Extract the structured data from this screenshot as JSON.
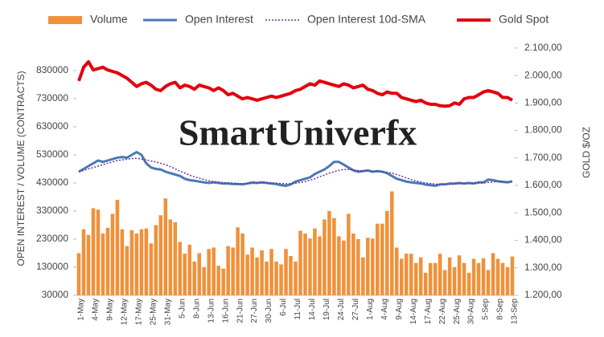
{
  "chart_data": {
    "type": "combo",
    "annotation": "SmartUniverfx",
    "y_label": "OPEN INTEREST / VOLUME (CONTRACTS)",
    "y2_label": "GOLD $/OZ",
    "categories": [
      "1-May",
      null,
      null,
      "4-May",
      null,
      null,
      "9-May",
      null,
      null,
      "12-May",
      null,
      null,
      "17-May",
      null,
      null,
      "25-May",
      null,
      null,
      "31-May",
      null,
      null,
      "5-Jun",
      null,
      null,
      "8-Jun",
      null,
      null,
      "13-Jun",
      null,
      null,
      "16-Jun",
      null,
      null,
      "21-Jun",
      null,
      null,
      "27-Jun",
      null,
      null,
      "30-Jun",
      null,
      null,
      "6-Jul",
      null,
      null,
      "11-Jul",
      null,
      null,
      "14-Jul",
      null,
      null,
      "19-Jul",
      null,
      null,
      "24-Jul",
      null,
      null,
      "27-Jul",
      null,
      null,
      "1-Aug",
      null,
      null,
      "4-Aug",
      null,
      null,
      "9-Aug",
      null,
      null,
      "14-Aug",
      null,
      null,
      "17-Aug",
      null,
      null,
      "22-Aug",
      null,
      null,
      "25-Aug",
      null,
      null,
      "30-Aug",
      null,
      null,
      "5-Sep",
      null,
      null,
      "8-Sep",
      null,
      null,
      "13-Sep"
    ],
    "series": [
      {
        "name": "Volume",
        "type": "bar",
        "color": "#f0913a",
        "values": [
          180000,
          265000,
          245000,
          340000,
          335000,
          250000,
          270000,
          320000,
          370000,
          265000,
          205000,
          262000,
          250000,
          265000,
          268000,
          215000,
          280000,
          315000,
          375000,
          300000,
          290000,
          220000,
          178000,
          210000,
          150000,
          180000,
          130000,
          195000,
          200000,
          135000,
          125000,
          205000,
          200000,
          272000,
          250000,
          175000,
          200000,
          165000,
          190000,
          150000,
          195000,
          150000,
          140000,
          195000,
          170000,
          150000,
          260000,
          250000,
          232000,
          268000,
          240000,
          300000,
          330000,
          305000,
          240000,
          225000,
          320000,
          250000,
          230000,
          165000,
          235000,
          232000,
          285000,
          285000,
          330000,
          400000,
          200000,
          160000,
          178000,
          178000,
          145000,
          165000,
          110000,
          145000,
          145000,
          178000,
          120000,
          165000,
          130000,
          172000,
          145000,
          110000,
          160000,
          145000,
          162000,
          120000,
          180000,
          160000,
          145000,
          130000,
          168000
        ]
      },
      {
        "name": "Open Interest",
        "type": "line",
        "color": "#4a78b5",
        "line_style": "solid",
        "values": [
          470000,
          480000,
          490000,
          500000,
          510000,
          505000,
          510000,
          515000,
          520000,
          522000,
          520000,
          530000,
          540000,
          530000,
          500000,
          485000,
          480000,
          478000,
          470000,
          465000,
          460000,
          455000,
          445000,
          440000,
          438000,
          435000,
          432000,
          430000,
          432000,
          430000,
          428000,
          428000,
          426000,
          426000,
          425000,
          428000,
          432000,
          430000,
          432000,
          430000,
          428000,
          426000,
          422000,
          420000,
          425000,
          435000,
          440000,
          445000,
          450000,
          462000,
          470000,
          478000,
          490000,
          505000,
          505000,
          495000,
          485000,
          475000,
          470000,
          472000,
          475000,
          470000,
          472000,
          470000,
          465000,
          455000,
          445000,
          440000,
          435000,
          432000,
          430000,
          428000,
          424000,
          422000,
          420000,
          425000,
          425000,
          428000,
          428000,
          430000,
          428000,
          430000,
          428000,
          432000,
          432000,
          442000,
          440000,
          436000,
          434000,
          432000,
          436000
        ]
      },
      {
        "name": "Open Interest 10d-SMA",
        "type": "line",
        "color": "#7030a0",
        "line_style": "dotted",
        "values": [
          470000,
          475000,
          480000,
          485000,
          490000,
          495000,
          500000,
          505000,
          510000,
          512000,
          515000,
          517000,
          518000,
          515000,
          512000,
          508000,
          505000,
          500000,
          495000,
          488000,
          480000,
          472000,
          465000,
          458000,
          452000,
          447000,
          442000,
          438000,
          435000,
          433000,
          431000,
          430000,
          429000,
          428000,
          428000,
          428000,
          428000,
          429000,
          430000,
          430000,
          430000,
          429000,
          428000,
          427000,
          427000,
          429000,
          432000,
          435000,
          440000,
          445000,
          452000,
          458000,
          465000,
          470000,
          475000,
          478000,
          478000,
          476000,
          474000,
          472000,
          472000,
          471000,
          471000,
          470000,
          468000,
          465000,
          460000,
          454000,
          448000,
          442000,
          437000,
          433000,
          430000,
          428000,
          426000,
          425000,
          425000,
          425000,
          426000,
          427000,
          428000,
          428000,
          429000,
          430000,
          430000,
          432000,
          434000,
          435000,
          435000,
          434000,
          434000
        ]
      },
      {
        "name": "Gold Spot",
        "type": "line",
        "color": "#e3000f",
        "line_style": "thick",
        "axis": "y2",
        "values": [
          1980,
          2030,
          2050,
          2020,
          2025,
          2030,
          2020,
          2015,
          2010,
          2000,
          1990,
          1975,
          1960,
          1970,
          1975,
          1965,
          1950,
          1945,
          1960,
          1970,
          1975,
          1955,
          1965,
          1960,
          1950,
          1965,
          1960,
          1955,
          1945,
          1955,
          1945,
          1930,
          1935,
          1925,
          1915,
          1920,
          1915,
          1910,
          1915,
          1920,
          1925,
          1920,
          1925,
          1930,
          1935,
          1945,
          1950,
          1960,
          1970,
          1965,
          1980,
          1975,
          1970,
          1965,
          1960,
          1970,
          1965,
          1955,
          1960,
          1965,
          1950,
          1945,
          1935,
          1930,
          1940,
          1935,
          1935,
          1920,
          1915,
          1910,
          1905,
          1910,
          1900,
          1895,
          1895,
          1890,
          1888,
          1890,
          1900,
          1895,
          1915,
          1920,
          1920,
          1930,
          1940,
          1945,
          1940,
          1935,
          1920,
          1920,
          1910
        ]
      }
    ],
    "ylim": [
      30000,
      930000
    ],
    "yticks": [
      30000,
      130000,
      230000,
      330000,
      430000,
      530000,
      630000,
      730000,
      830000
    ],
    "y2lim": [
      1200,
      2120
    ],
    "y2ticks": [
      {
        "value": 1200,
        "label": "1.200,00"
      },
      {
        "value": 1300,
        "label": "1.300,00"
      },
      {
        "value": 1400,
        "label": "1.400,00"
      },
      {
        "value": 1500,
        "label": "1.500,00"
      },
      {
        "value": 1600,
        "label": "1.600,00"
      },
      {
        "value": 1700,
        "label": "1.700,00"
      },
      {
        "value": 1800,
        "label": "1.800,00"
      },
      {
        "value": 1900,
        "label": "1.900,00"
      },
      {
        "value": 2000,
        "label": "2.000,00"
      },
      {
        "value": 2100,
        "label": "2.100,00"
      }
    ],
    "legend": "top"
  }
}
